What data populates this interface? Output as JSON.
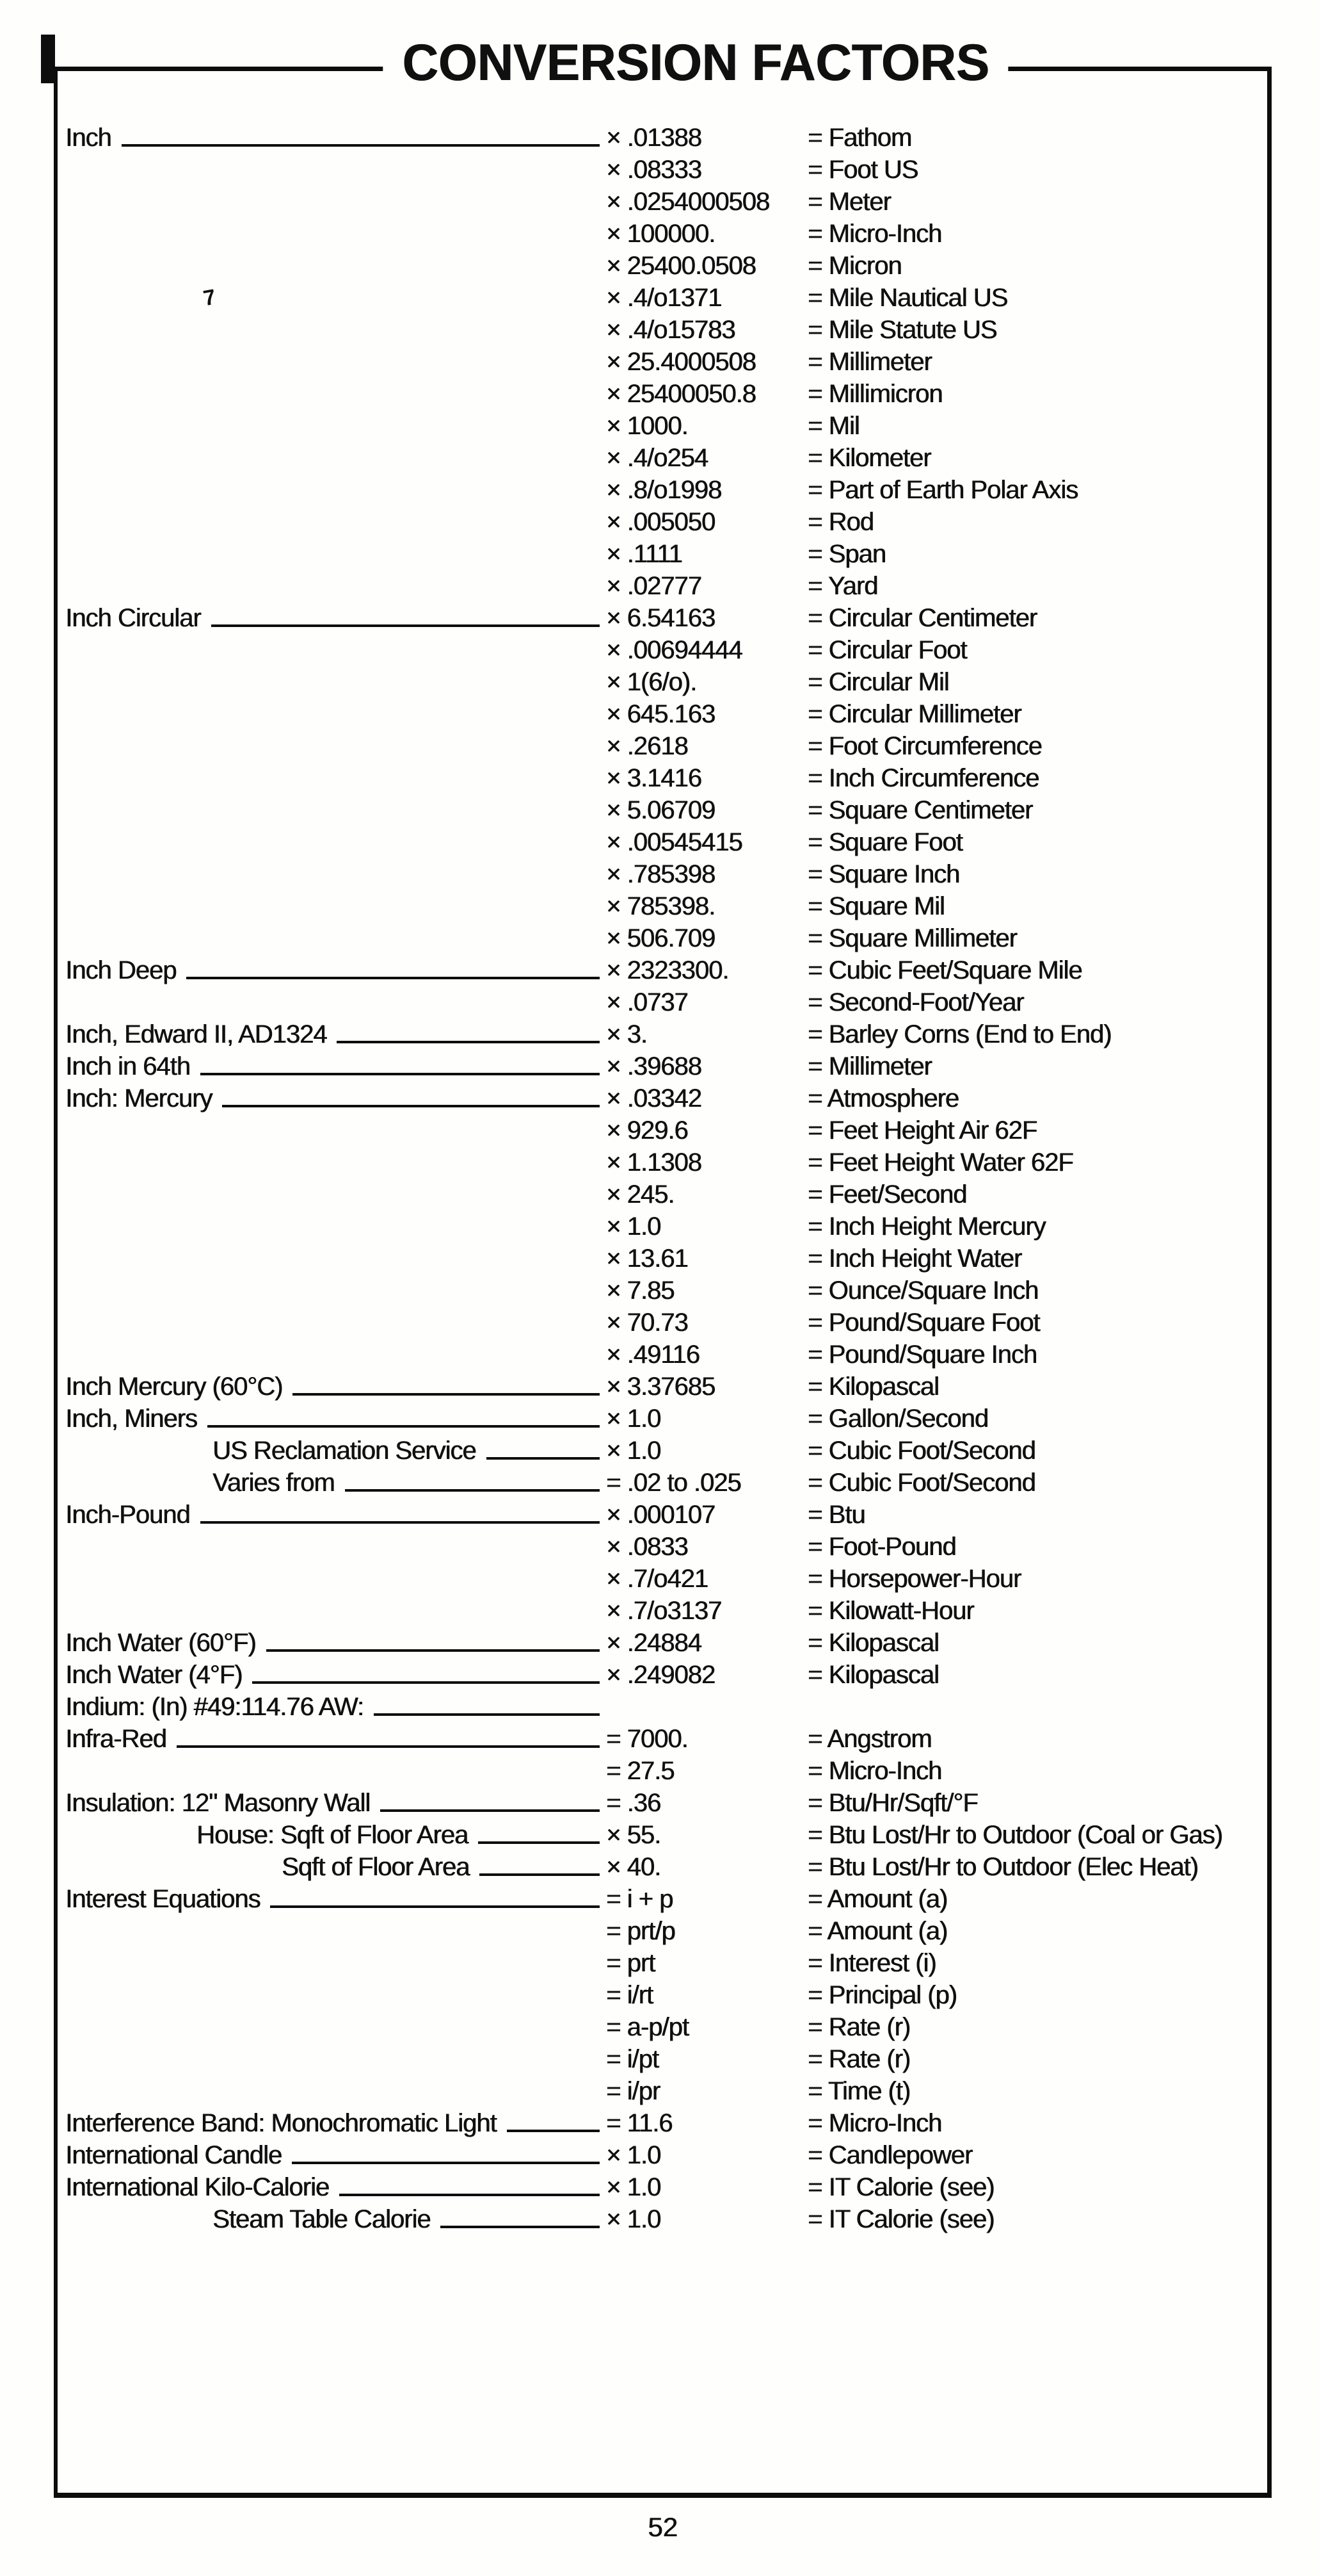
{
  "header": {
    "title": "CONVERSION FACTORS"
  },
  "footer": {
    "page_number": "52"
  },
  "artifacts": {
    "stray_mark": "7"
  },
  "colors": {
    "ink": "#0d0d0d",
    "paper": "#fefefd"
  },
  "table": {
    "rows": [
      {
        "label": "Inch",
        "indent": 0,
        "factor": "× .01388",
        "result": "= Fathom"
      },
      {
        "label": "",
        "indent": 0,
        "factor": "× .08333",
        "result": "= Foot US"
      },
      {
        "label": "",
        "indent": 0,
        "factor": "× .0254000508",
        "result": "= Meter"
      },
      {
        "label": "",
        "indent": 0,
        "factor": "× 100000.",
        "result": "= Micro-Inch"
      },
      {
        "label": "",
        "indent": 0,
        "factor": "× 25400.0508",
        "result": "= Micron"
      },
      {
        "label": "",
        "indent": 0,
        "factor": "× .4/o1371",
        "result": "= Mile Nautical US"
      },
      {
        "label": "",
        "indent": 0,
        "factor": "× .4/o15783",
        "result": "= Mile Statute US"
      },
      {
        "label": "",
        "indent": 0,
        "factor": "× 25.4000508",
        "result": "= Millimeter"
      },
      {
        "label": "",
        "indent": 0,
        "factor": "× 25400050.8",
        "result": "= Millimicron"
      },
      {
        "label": "",
        "indent": 0,
        "factor": "× 1000.",
        "result": "= Mil"
      },
      {
        "label": "",
        "indent": 0,
        "factor": "× .4/o254",
        "result": "= Kilometer"
      },
      {
        "label": "",
        "indent": 0,
        "factor": "× .8/o1998",
        "result": "= Part of Earth Polar Axis"
      },
      {
        "label": "",
        "indent": 0,
        "factor": "× .005050",
        "result": "= Rod"
      },
      {
        "label": "",
        "indent": 0,
        "factor": "× .1111",
        "result": "= Span"
      },
      {
        "label": "",
        "indent": 0,
        "factor": "× .02777",
        "result": "= Yard"
      },
      {
        "label": "Inch Circular",
        "indent": 0,
        "factor": "× 6.54163",
        "result": "= Circular Centimeter"
      },
      {
        "label": "",
        "indent": 0,
        "factor": "× .00694444",
        "result": "= Circular Foot"
      },
      {
        "label": "",
        "indent": 0,
        "factor": "× 1(6/o).",
        "result": "= Circular Mil"
      },
      {
        "label": "",
        "indent": 0,
        "factor": "× 645.163",
        "result": "= Circular Millimeter"
      },
      {
        "label": "",
        "indent": 0,
        "factor": "× .2618",
        "result": "= Foot Circumference"
      },
      {
        "label": "",
        "indent": 0,
        "factor": "× 3.1416",
        "result": "= Inch Circumference"
      },
      {
        "label": "",
        "indent": 0,
        "factor": "× 5.06709",
        "result": "= Square Centimeter"
      },
      {
        "label": "",
        "indent": 0,
        "factor": "× .00545415",
        "result": "= Square Foot"
      },
      {
        "label": "",
        "indent": 0,
        "factor": "× .785398",
        "result": "= Square Inch"
      },
      {
        "label": "",
        "indent": 0,
        "factor": "× 785398.",
        "result": "= Square Mil"
      },
      {
        "label": "",
        "indent": 0,
        "factor": "× 506.709",
        "result": "= Square Millimeter"
      },
      {
        "label": "Inch Deep",
        "indent": 0,
        "factor": "× 2323300.",
        "result": "= Cubic Feet/Square Mile"
      },
      {
        "label": "",
        "indent": 0,
        "factor": "× .0737",
        "result": "= Second-Foot/Year"
      },
      {
        "label": "Inch, Edward II, AD1324",
        "indent": 0,
        "factor": "× 3.",
        "result": "= Barley Corns (End to End)"
      },
      {
        "label": "Inch in 64th",
        "indent": 0,
        "factor": "× .39688",
        "result": "= Millimeter"
      },
      {
        "label": "Inch: Mercury",
        "indent": 0,
        "factor": "× .03342",
        "result": "= Atmosphere"
      },
      {
        "label": "",
        "indent": 0,
        "factor": "× 929.6",
        "result": "= Feet Height Air 62F"
      },
      {
        "label": "",
        "indent": 0,
        "factor": "× 1.1308",
        "result": "= Feet Height Water 62F"
      },
      {
        "label": "",
        "indent": 0,
        "factor": "× 245.",
        "result": "= Feet/Second"
      },
      {
        "label": "",
        "indent": 0,
        "factor": "× 1.0",
        "result": "= Inch Height Mercury"
      },
      {
        "label": "",
        "indent": 0,
        "factor": "× 13.61",
        "result": "= Inch Height Water"
      },
      {
        "label": "",
        "indent": 0,
        "factor": "× 7.85",
        "result": "= Ounce/Square Inch"
      },
      {
        "label": "",
        "indent": 0,
        "factor": "× 70.73",
        "result": "= Pound/Square Foot"
      },
      {
        "label": "",
        "indent": 0,
        "factor": "× .49116",
        "result": "= Pound/Square Inch"
      },
      {
        "label": "Inch Mercury (60°C)",
        "indent": 0,
        "factor": "× 3.37685",
        "result": "= Kilopascal"
      },
      {
        "label": "Inch, Miners",
        "indent": 0,
        "factor": "× 1.0",
        "result": "= Gallon/Second"
      },
      {
        "label": "US Reclamation Service",
        "indent": 1,
        "factor": "× 1.0",
        "result": "= Cubic Foot/Second"
      },
      {
        "label": "Varies from",
        "indent": 1,
        "factor": "= .02 to .025",
        "result": "= Cubic Foot/Second"
      },
      {
        "label": "Inch-Pound",
        "indent": 0,
        "factor": "× .000107",
        "result": "= Btu"
      },
      {
        "label": "",
        "indent": 0,
        "factor": "× .0833",
        "result": "= Foot-Pound"
      },
      {
        "label": "",
        "indent": 0,
        "factor": "× .7/o421",
        "result": "= Horsepower-Hour"
      },
      {
        "label": "",
        "indent": 0,
        "factor": "× .7/o3137",
        "result": "= Kilowatt-Hour"
      },
      {
        "label": "Inch Water (60°F)",
        "indent": 0,
        "factor": "× .24884",
        "result": "= Kilopascal"
      },
      {
        "label": "Inch Water (4°F)",
        "indent": 0,
        "factor": "× .249082",
        "result": "= Kilopascal"
      },
      {
        "label": "Indium: (In) #49:114.76 AW:",
        "indent": 0,
        "factor": "",
        "result": ""
      },
      {
        "label": "Infra-Red",
        "indent": 0,
        "factor": "= 7000.",
        "result": "= Angstrom"
      },
      {
        "label": "",
        "indent": 0,
        "factor": "= 27.5",
        "result": "= Micro-Inch"
      },
      {
        "label": "Insulation: 12\" Masonry Wall",
        "indent": 0,
        "factor": "= .36",
        "result": "= Btu/Hr/Sqft/°F"
      },
      {
        "label": "House: Sqft of Floor Area",
        "indent": 2,
        "factor": "× 55.",
        "result": "= Btu Lost/Hr to Outdoor (Coal or Gas)"
      },
      {
        "label": "Sqft of Floor Area",
        "indent": 3,
        "factor": "× 40.",
        "result": "= Btu Lost/Hr to Outdoor (Elec Heat)"
      },
      {
        "label": "Interest Equations",
        "indent": 0,
        "factor": "= i + p",
        "result": "= Amount (a)"
      },
      {
        "label": "",
        "indent": 0,
        "factor": "= prt/p",
        "result": "= Amount (a)"
      },
      {
        "label": "",
        "indent": 0,
        "factor": "= prt",
        "result": "= Interest (i)"
      },
      {
        "label": "",
        "indent": 0,
        "factor": "= i/rt",
        "result": "= Principal (p)"
      },
      {
        "label": "",
        "indent": 0,
        "factor": "= a-p/pt",
        "result": "= Rate (r)"
      },
      {
        "label": "",
        "indent": 0,
        "factor": "= i/pt",
        "result": "= Rate (r)"
      },
      {
        "label": "",
        "indent": 0,
        "factor": "= i/pr",
        "result": "= Time (t)"
      },
      {
        "label": "Interference Band: Monochromatic Light",
        "indent": 0,
        "factor": "= 11.6",
        "result": "= Micro-Inch"
      },
      {
        "label": "International Candle",
        "indent": 0,
        "factor": "× 1.0",
        "result": "= Candlepower"
      },
      {
        "label": "International Kilo-Calorie",
        "indent": 0,
        "factor": "× 1.0",
        "result": "= IT Calorie (see)"
      },
      {
        "label": "Steam Table Calorie",
        "indent": 1,
        "factor": "× 1.0",
        "result": "= IT Calorie (see)"
      }
    ]
  }
}
